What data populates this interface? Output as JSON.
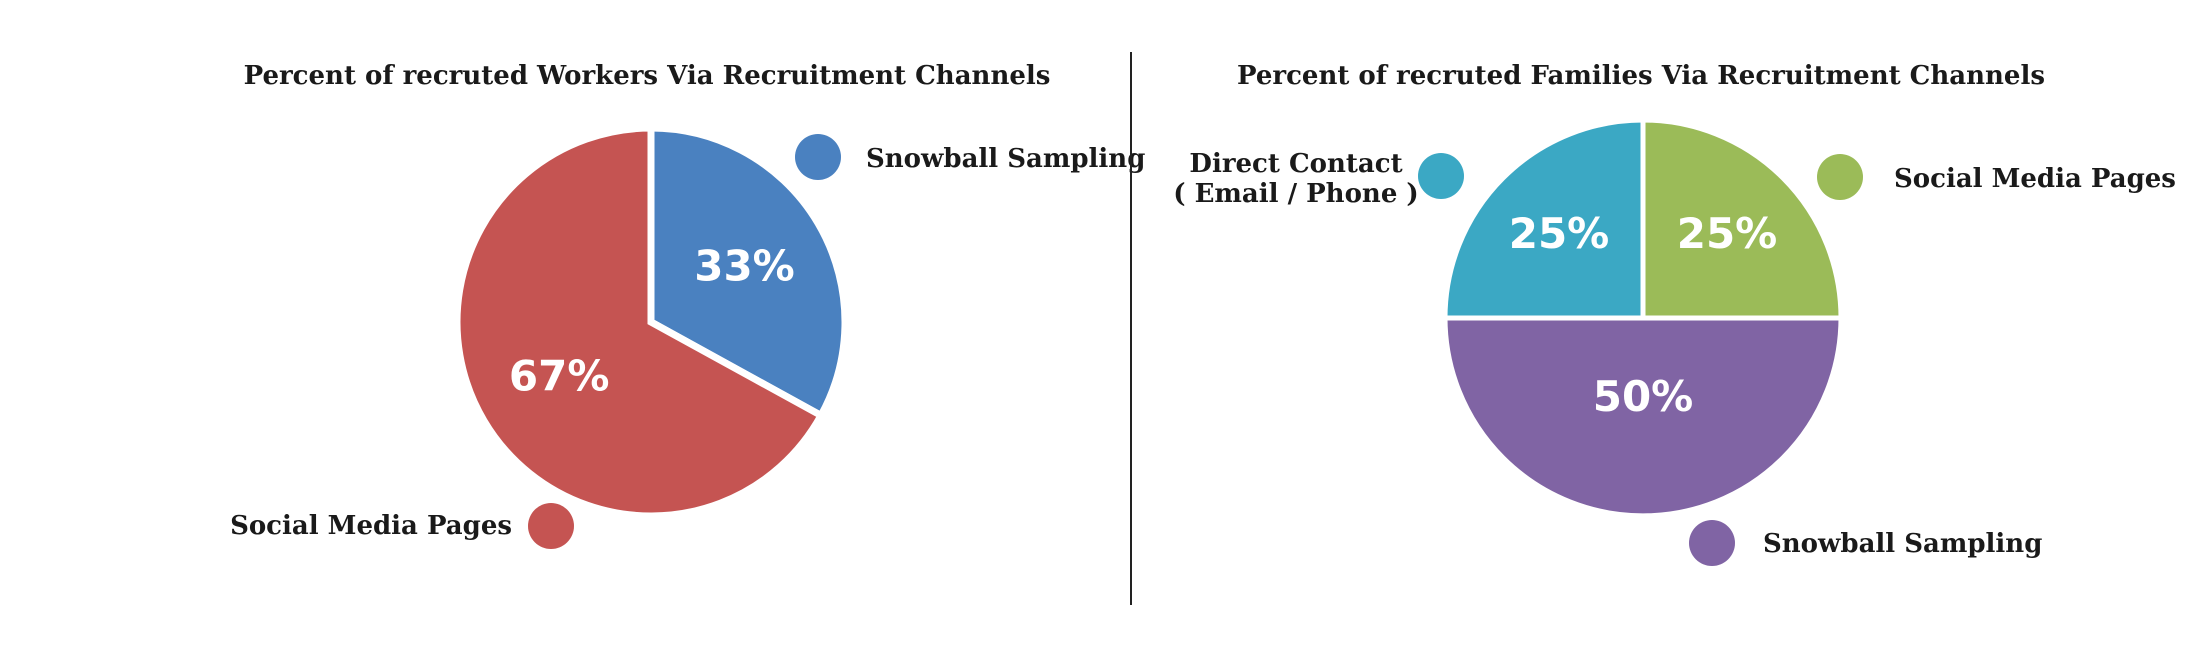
{
  "chart_data": [
    {
      "type": "pie",
      "title": "Percent of recruted Workers Via Recruitment Channels",
      "slices": [
        {
          "name": "Snowball Sampling",
          "value": 33,
          "label": "33%",
          "color": "#4a81c0"
        },
        {
          "name": "Social Media Pages",
          "value": 67,
          "label": "67%",
          "color": "#c55452"
        }
      ]
    },
    {
      "type": "pie",
      "title": "Percent of recruted Families Via Recruitment Channels",
      "slices": [
        {
          "name": "Social Media Pages",
          "value": 25,
          "label": "25%",
          "color": "#9bbb58"
        },
        {
          "name": "Snowball Sampling",
          "value": 50,
          "label": "50%",
          "color": "#8064a4"
        },
        {
          "name": "Direct Contact",
          "name_line2": "( Email / Phone )",
          "value": 25,
          "label": "25%",
          "color": "#3ba8c4"
        }
      ]
    }
  ]
}
